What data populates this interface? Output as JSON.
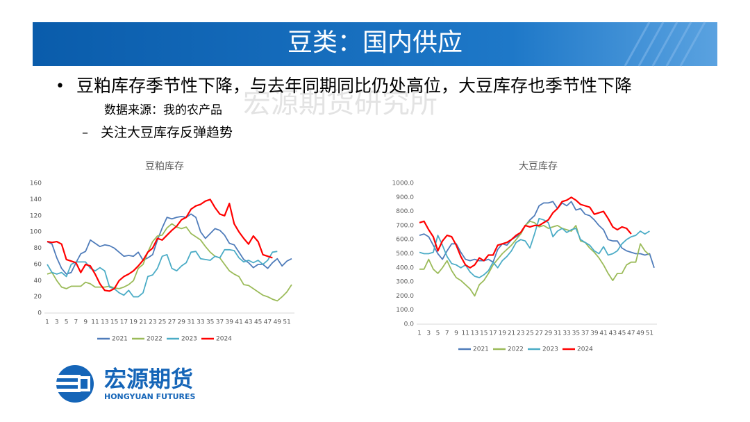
{
  "header": {
    "title": "豆类：国内供应"
  },
  "bullet": {
    "text": "豆粕库存季节性下降，与去年同期同比仍处高位，大豆库存也季节性下降",
    "source": "数据来源：我的农产品",
    "sub": "关注大豆库存反弹趋势"
  },
  "watermark": "宏源期货研究所",
  "logo": {
    "name": "宏源期货",
    "english": "HONGYUAN FUTURES"
  },
  "chart_data": [
    {
      "type": "line",
      "title": "豆粕库存",
      "categories": [
        1,
        null,
        3,
        null,
        5,
        null,
        7,
        null,
        9,
        null,
        11,
        null,
        13,
        null,
        15,
        null,
        17,
        null,
        19,
        null,
        21,
        null,
        23,
        null,
        25,
        null,
        27,
        null,
        29,
        null,
        31,
        null,
        33,
        null,
        35,
        null,
        37,
        null,
        39,
        null,
        41,
        null,
        43,
        null,
        45,
        null,
        47,
        null,
        49,
        null,
        51,
        null
      ],
      "ylim": [
        0,
        160
      ],
      "yticks": [
        0,
        20,
        40,
        60,
        80,
        100,
        120,
        140,
        160
      ],
      "series": [
        {
          "name": "2021",
          "color": "#4f7cba",
          "values": [
            88,
            85,
            68,
            55,
            48,
            50,
            62,
            73,
            76,
            90,
            86,
            82,
            84,
            83,
            80,
            75,
            70,
            71,
            70,
            75,
            65,
            68,
            72,
            90,
            105,
            118,
            116,
            118,
            119,
            118,
            122,
            118,
            100,
            92,
            98,
            104,
            102,
            96,
            86,
            84,
            75,
            66,
            62,
            56,
            60,
            60,
            55,
            62,
            67,
            58,
            64,
            67
          ]
        },
        {
          "name": "2022",
          "color": "#9bbb59",
          "values": [
            48,
            50,
            40,
            32,
            30,
            33,
            33,
            33,
            38,
            36,
            32,
            32,
            32,
            33,
            31,
            30,
            32,
            35,
            40,
            55,
            60,
            75,
            88,
            95,
            96,
            105,
            110,
            106,
            104,
            106,
            98,
            94,
            90,
            82,
            75,
            70,
            68,
            60,
            52,
            48,
            45,
            35,
            34,
            30,
            26,
            22,
            20,
            17,
            15,
            20,
            26,
            35
          ]
        },
        {
          "name": "2023",
          "color": "#4bacc6",
          "values": [
            60,
            50,
            48,
            50,
            45,
            60,
            63,
            63,
            63,
            55,
            52,
            56,
            52,
            32,
            30,
            25,
            22,
            28,
            20,
            20,
            25,
            45,
            47,
            55,
            70,
            72,
            55,
            52,
            58,
            62,
            75,
            76,
            67,
            66,
            65,
            70,
            68,
            78,
            78,
            77,
            68,
            63,
            65,
            62,
            65,
            60,
            65,
            75,
            76,
            null,
            null,
            null
          ]
        },
        {
          "name": "2024",
          "color": "#ff0000",
          "values": [
            88,
            87,
            88,
            85,
            66,
            64,
            62,
            50,
            60,
            58,
            48,
            36,
            28,
            27,
            30,
            40,
            45,
            48,
            52,
            58,
            65,
            75,
            80,
            92,
            90,
            96,
            102,
            107,
            115,
            118,
            128,
            132,
            134,
            138,
            140,
            130,
            122,
            120,
            135,
            110,
            100,
            92,
            85,
            95,
            88,
            72,
            70,
            68,
            null,
            null,
            null,
            null
          ]
        }
      ]
    },
    {
      "type": "line",
      "title": "大豆库存",
      "categories": [
        1,
        null,
        3,
        null,
        5,
        null,
        7,
        null,
        9,
        null,
        11,
        null,
        13,
        null,
        15,
        null,
        17,
        null,
        19,
        null,
        21,
        null,
        23,
        null,
        25,
        null,
        27,
        null,
        29,
        null,
        31,
        null,
        33,
        null,
        35,
        null,
        37,
        null,
        39,
        null,
        41,
        null,
        43,
        null,
        45,
        null,
        47,
        null,
        49,
        null,
        51,
        null
      ],
      "ylim": [
        0,
        1000
      ],
      "yticks": [
        {
          "value": 0,
          "label": "0.0"
        },
        {
          "value": 100,
          "label": "100.0"
        },
        {
          "value": 200,
          "label": "200.0"
        },
        {
          "value": 300,
          "label": "300.0"
        },
        {
          "value": 400,
          "label": "400.0"
        },
        {
          "value": 500,
          "label": "500.0"
        },
        {
          "value": 600,
          "label": "600.0"
        },
        {
          "value": 700,
          "label": "700.0"
        },
        {
          "value": 800,
          "label": "800.0"
        },
        {
          "value": 900,
          "label": "900.0"
        },
        {
          "value": 1000,
          "label": "1000.0"
        }
      ],
      "series": [
        {
          "name": "2021",
          "color": "#4f7cba",
          "values": [
            630,
            640,
            620,
            560,
            500,
            460,
            520,
            570,
            570,
            510,
            460,
            450,
            460,
            450,
            450,
            460,
            440,
            530,
            570,
            560,
            600,
            620,
            640,
            700,
            740,
            770,
            840,
            860,
            860,
            870,
            820,
            860,
            840,
            870,
            810,
            820,
            780,
            770,
            740,
            700,
            670,
            600,
            590,
            590,
            540,
            520,
            510,
            500,
            500,
            490,
            500,
            400
          ]
        },
        {
          "name": "2022",
          "color": "#9bbb59",
          "values": [
            390,
            390,
            460,
            390,
            360,
            400,
            450,
            380,
            330,
            310,
            280,
            250,
            200,
            280,
            310,
            360,
            420,
            460,
            500,
            530,
            560,
            600,
            640,
            700,
            730,
            720,
            690,
            700,
            680,
            690,
            700,
            680,
            670,
            660,
            700,
            590,
            580,
            540,
            510,
            470,
            420,
            360,
            310,
            360,
            360,
            420,
            440,
            440,
            570,
            520,
            490,
            null
          ]
        },
        {
          "name": "2023",
          "color": "#4bacc6",
          "values": [
            510,
            500,
            500,
            510,
            630,
            560,
            480,
            430,
            420,
            400,
            420,
            370,
            340,
            330,
            350,
            380,
            440,
            400,
            450,
            480,
            520,
            580,
            600,
            590,
            540,
            640,
            750,
            740,
            720,
            620,
            660,
            680,
            650,
            670,
            680,
            600,
            580,
            560,
            520,
            500,
            550,
            490,
            500,
            520,
            570,
            600,
            620,
            630,
            660,
            640,
            660,
            null
          ]
        },
        {
          "name": "2024",
          "color": "#ff0000",
          "values": [
            720,
            730,
            670,
            620,
            520,
            590,
            630,
            620,
            560,
            480,
            420,
            400,
            420,
            470,
            450,
            490,
            490,
            560,
            570,
            580,
            600,
            630,
            650,
            700,
            690,
            700,
            700,
            720,
            740,
            790,
            820,
            870,
            880,
            900,
            880,
            850,
            840,
            830,
            780,
            790,
            800,
            750,
            690,
            670,
            690,
            680,
            640,
            null,
            null,
            null,
            null,
            null
          ]
        }
      ]
    }
  ]
}
